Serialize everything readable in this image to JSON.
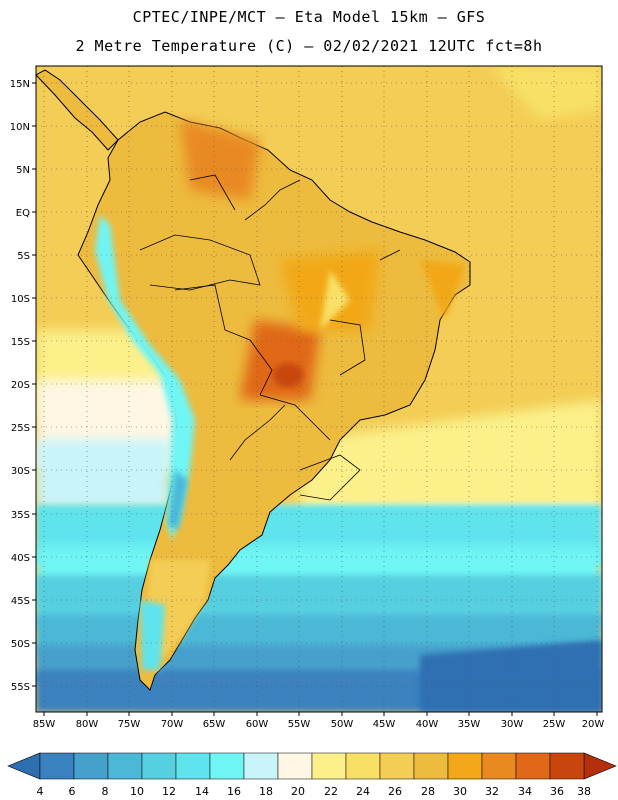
{
  "header": {
    "title_line1": "CPTEC/INPE/MCT –  Eta Model 15km – GFS",
    "title_line2": "2 Metre Temperature (C) – 02/02/2021 12UTC fct=8h"
  },
  "map": {
    "lat_labels": [
      "15N",
      "10N",
      "5N",
      "EQ",
      "5S",
      "10S",
      "15S",
      "20S",
      "25S",
      "30S",
      "35S",
      "40S",
      "45S",
      "50S",
      "55S"
    ],
    "lon_labels": [
      "85W",
      "80W",
      "75W",
      "70W",
      "65W",
      "60W",
      "55W",
      "50W",
      "45W",
      "40W",
      "35W",
      "30W",
      "25W",
      "20W"
    ]
  },
  "colorbar": {
    "levels": [
      "4",
      "6",
      "8",
      "10",
      "12",
      "14",
      "16",
      "18",
      "20",
      "22",
      "24",
      "26",
      "28",
      "30",
      "32",
      "34",
      "36",
      "38"
    ],
    "colors": [
      "#2e6fb2",
      "#3a82bf",
      "#46a0cc",
      "#4bb8d8",
      "#56d0e0",
      "#5fe3ec",
      "#70f5f5",
      "#c8f4fa",
      "#fdf7e4",
      "#fbf08a",
      "#f8e066",
      "#f3cd55",
      "#edbb3e",
      "#f2a818",
      "#e98920",
      "#e06818",
      "#c8460e",
      "#b5300a"
    ]
  }
}
